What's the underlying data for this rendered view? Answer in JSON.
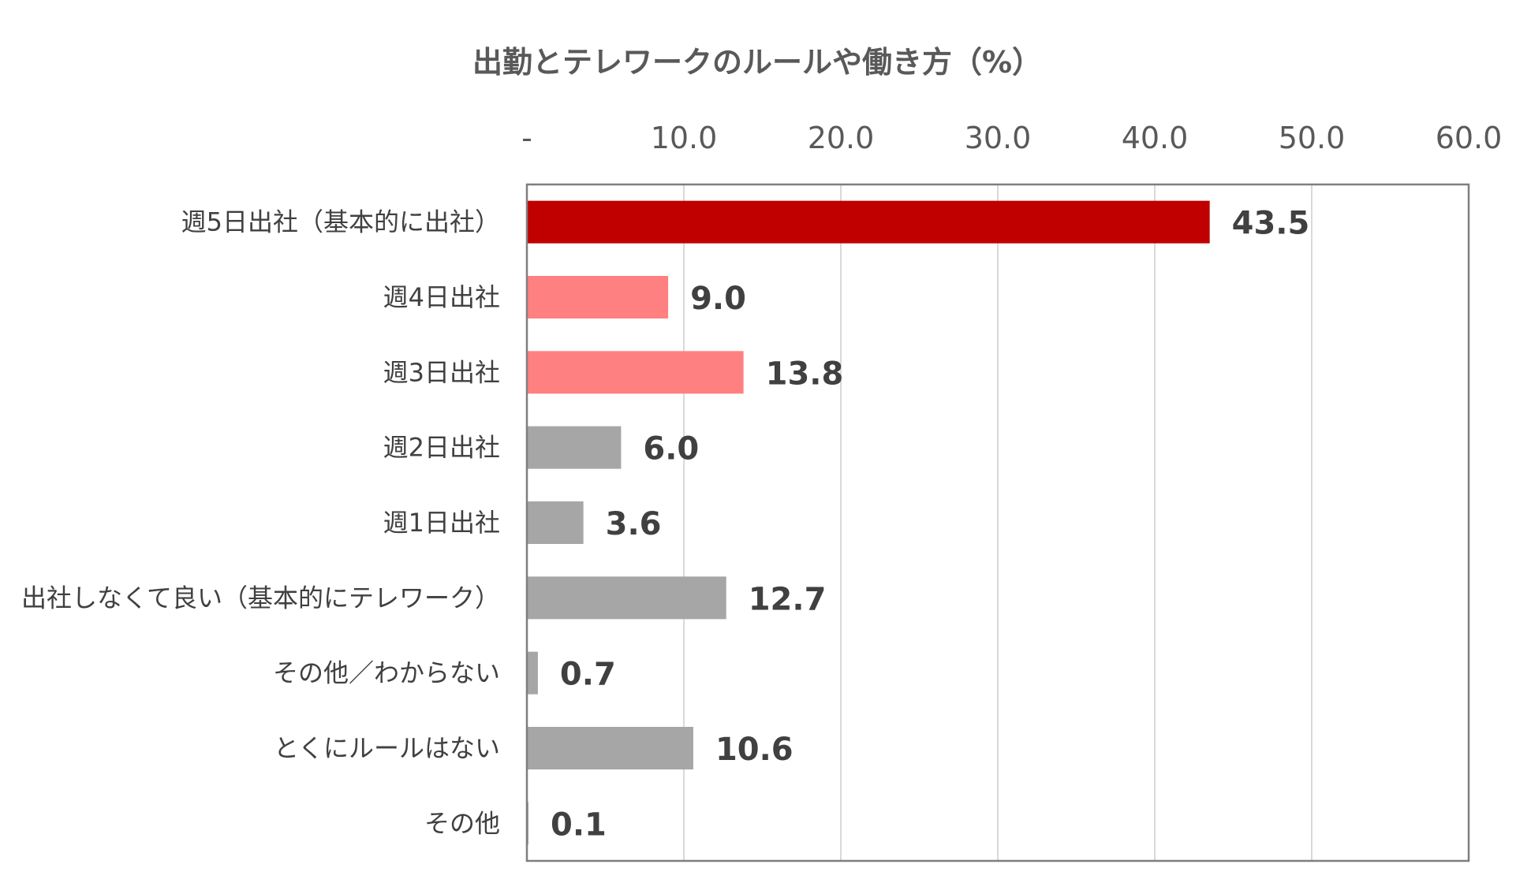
{
  "chart_data": {
    "type": "bar",
    "orientation": "horizontal",
    "title": "出勤とテレワークのルールや働き方（%）",
    "categories": [
      "週5日出社（基本的に出社）",
      "週4日出社",
      "週3日出社",
      "週2日出社",
      "週1日出社",
      "出社しなくて良い（基本的にテレワーク）",
      "その他／わからない",
      "とくにルールはない",
      "その他"
    ],
    "values": [
      43.5,
      9.0,
      13.8,
      6.0,
      3.6,
      12.7,
      0.7,
      10.6,
      0.1
    ],
    "value_labels": [
      "43.5",
      "9.0",
      "13.8",
      "6.0",
      "3.6",
      "12.7",
      "0.7",
      "10.6",
      "0.1"
    ],
    "bar_colors": [
      "#c00000",
      "#ff8080",
      "#ff8080",
      "#a6a6a6",
      "#a6a6a6",
      "#a6a6a6",
      "#a6a6a6",
      "#a6a6a6",
      "#a6a6a6"
    ],
    "xlim": [
      0,
      60
    ],
    "xticks": [
      0,
      10,
      20,
      30,
      40,
      50,
      60
    ],
    "xtick_labels": [
      "-",
      "10.0",
      "20.0",
      "30.0",
      "40.0",
      "50.0",
      "60.0"
    ],
    "x_axis_position": "top",
    "grid": "vertical",
    "legend": "none"
  }
}
